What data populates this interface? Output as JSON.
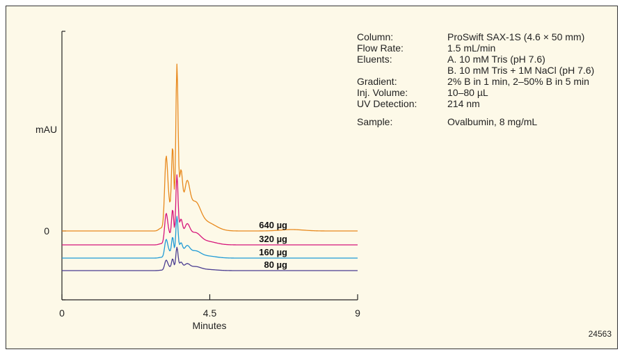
{
  "chart_data": {
    "type": "line",
    "xlabel": "Minutes",
    "ylabel": "mAU",
    "xlim": [
      0,
      9
    ],
    "xticks": [
      {
        "value": 0,
        "label": "0"
      },
      {
        "value": 4.5,
        "label": "4.5"
      },
      {
        "value": 9,
        "label": "9"
      }
    ],
    "yticks": [
      {
        "value": 0,
        "label": "0"
      }
    ],
    "series": [
      {
        "name": "640 µg",
        "color": "#E8891D",
        "offset": 0,
        "scale": 1.0,
        "tail_bump": 1
      },
      {
        "name": "320 µg",
        "color": "#D6157A",
        "offset": -20,
        "scale": 0.42,
        "tail_bump": 0
      },
      {
        "name": "160 µg",
        "color": "#1E9AD6",
        "offset": -39,
        "scale": 0.25,
        "tail_bump": 0
      },
      {
        "name": "80 µg",
        "color": "#4A3D91",
        "offset": -57,
        "scale": 0.14,
        "tail_bump": 0
      }
    ]
  },
  "conditions": [
    {
      "label": "Column:",
      "value": "ProSwift SAX-1S (4.6 × 50 mm)"
    },
    {
      "label": "Flow Rate:",
      "value": "1.5 mL/min"
    },
    {
      "label": "Eluents:",
      "value": "A. 10 mM Tris (pH 7.6)"
    },
    {
      "label": "",
      "value": "B. 10 mM Tris + 1M NaCl (pH 7.6)"
    },
    {
      "label": "Gradient:",
      "value": "2% B in 1 min, 2–50% B in 5 min"
    },
    {
      "label": "Inj. Volume:",
      "value": "10–80 µL"
    },
    {
      "label": "UV Detection:",
      "value": "214 nm"
    }
  ],
  "sample": {
    "label": "Sample:",
    "value": "Ovalbumin, 8 mg/mL"
  },
  "figure_id": "24563"
}
